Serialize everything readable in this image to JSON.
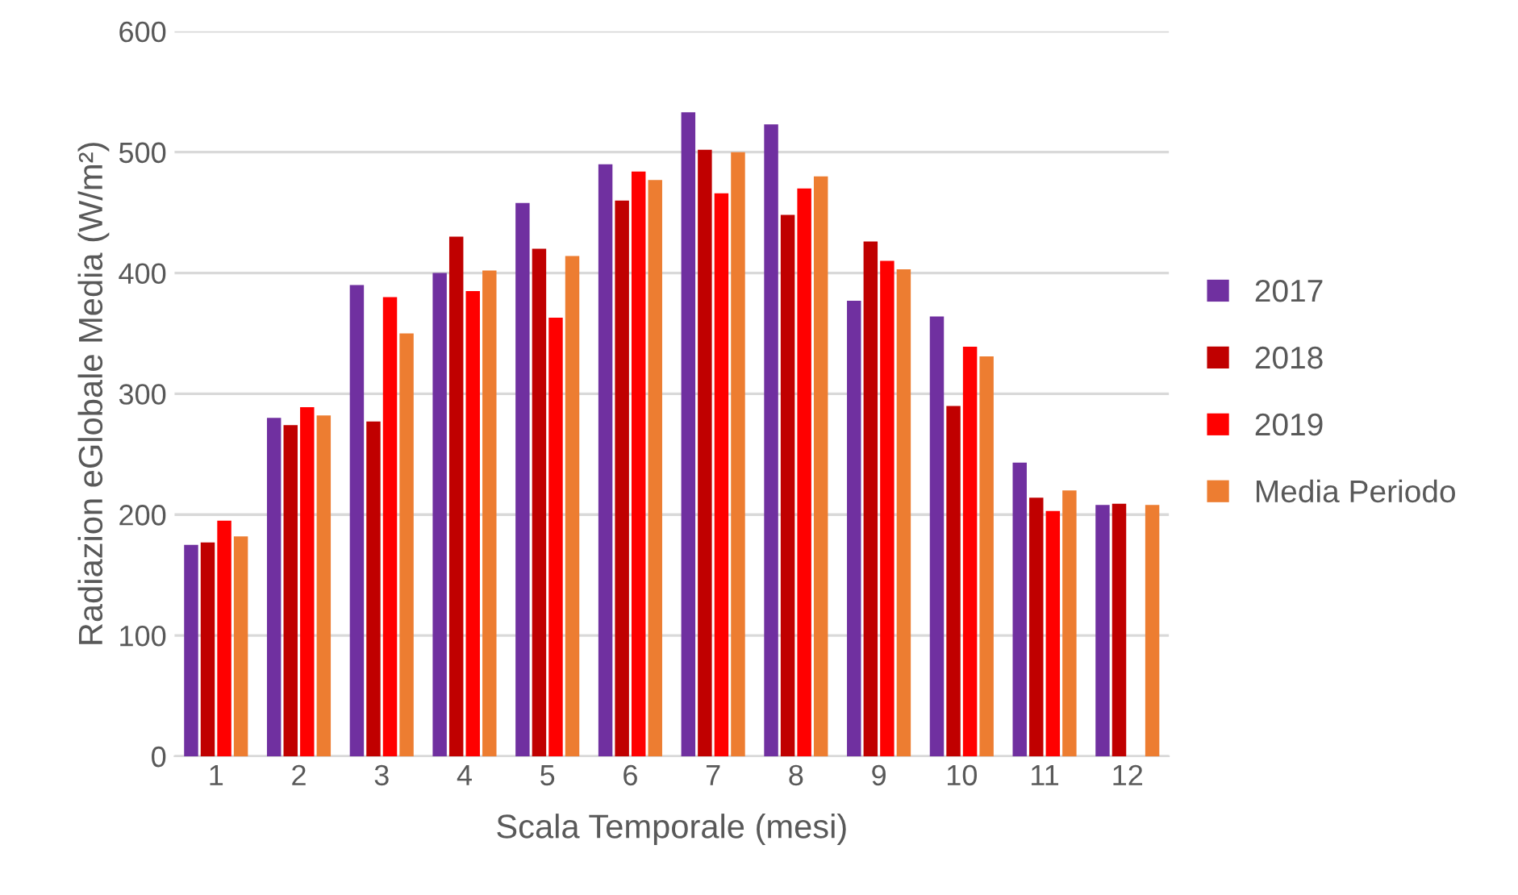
{
  "chart_data": {
    "type": "bar",
    "xlabel": "Scala Temporale (mesi)",
    "ylabel": "Radiazion eGlobale Media (W/m²)",
    "categories": [
      "1",
      "2",
      "3",
      "4",
      "5",
      "6",
      "7",
      "8",
      "9",
      "10",
      "11",
      "12"
    ],
    "series": [
      {
        "name": "2017",
        "color": "#7030a0",
        "values": [
          175,
          280,
          390,
          400,
          458,
          490,
          533,
          523,
          377,
          364,
          243,
          208
        ]
      },
      {
        "name": "2018",
        "color": "#c00000",
        "values": [
          177,
          274,
          277,
          430,
          420,
          460,
          502,
          448,
          426,
          290,
          214,
          209
        ]
      },
      {
        "name": "2019",
        "color": "#ff0000",
        "values": [
          195,
          289,
          380,
          385,
          363,
          484,
          466,
          470,
          410,
          339,
          203,
          null
        ]
      },
      {
        "name": "Media Periodo",
        "color": "#ed7d31",
        "values": [
          182,
          282,
          350,
          402,
          414,
          477,
          500,
          480,
          403,
          331,
          220,
          208
        ]
      }
    ],
    "ylim": [
      0,
      600
    ],
    "yticks": [
      0,
      100,
      200,
      300,
      400,
      500,
      600
    ],
    "grid": "y",
    "legend": "right"
  }
}
